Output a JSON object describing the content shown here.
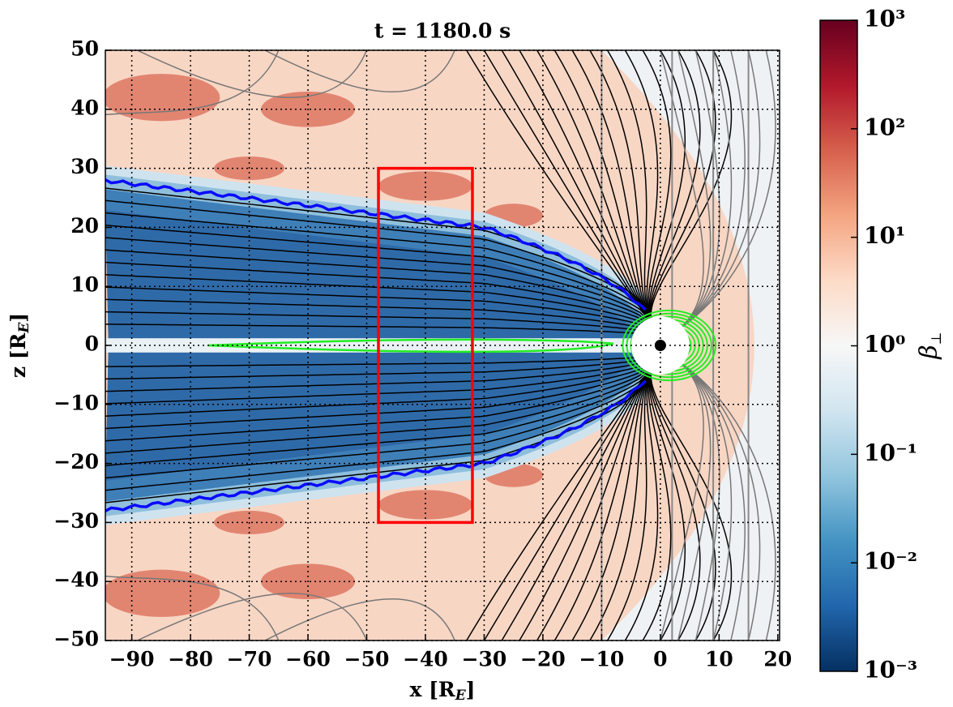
{
  "chart_data": {
    "type": "heatmap",
    "title": "t = 1180.0 s",
    "xlabel": [
      "x [R",
      "E",
      "]"
    ],
    "ylabel": [
      "z [R",
      "E",
      "]"
    ],
    "xlim": [
      -94.5,
      20.3
    ],
    "ylim": [
      -50,
      50
    ],
    "xticks": [
      {
        "value": -90,
        "label": "−90"
      },
      {
        "value": -80,
        "label": "−80"
      },
      {
        "value": -70,
        "label": "−70"
      },
      {
        "value": -60,
        "label": "−60"
      },
      {
        "value": -50,
        "label": "−50"
      },
      {
        "value": -40,
        "label": "−40"
      },
      {
        "value": -30,
        "label": "−30"
      },
      {
        "value": -20,
        "label": "−20"
      },
      {
        "value": -10,
        "label": "−10"
      },
      0,
      10,
      20
    ],
    "yticks": [
      {
        "value": -50,
        "label": "−50"
      },
      {
        "value": -40,
        "label": "−40"
      },
      {
        "value": -30,
        "label": "−30"
      },
      {
        "value": -20,
        "label": "−20"
      },
      {
        "value": -10,
        "label": "−10"
      },
      0,
      10,
      20,
      30,
      40,
      50
    ],
    "grid": true,
    "colorbar": {
      "label": [
        "β",
        "⊥"
      ],
      "log_scale": true,
      "lim": [
        0.001,
        1000
      ],
      "ticks": [
        {
          "value": 0.001,
          "label": "10⁻³"
        },
        {
          "value": 0.01,
          "label": "10⁻²"
        },
        {
          "value": 0.1,
          "label": "10⁻¹"
        },
        {
          "value": 1,
          "label": "10⁰"
        },
        {
          "value": 10,
          "label": "10¹"
        },
        {
          "value": 100,
          "label": "10²"
        },
        {
          "value": 1000,
          "label": "10³"
        }
      ]
    },
    "box": {
      "xlim": [
        -48,
        -32
      ],
      "ylim": [
        -30,
        30
      ],
      "color": "#ff0000"
    }
  }
}
